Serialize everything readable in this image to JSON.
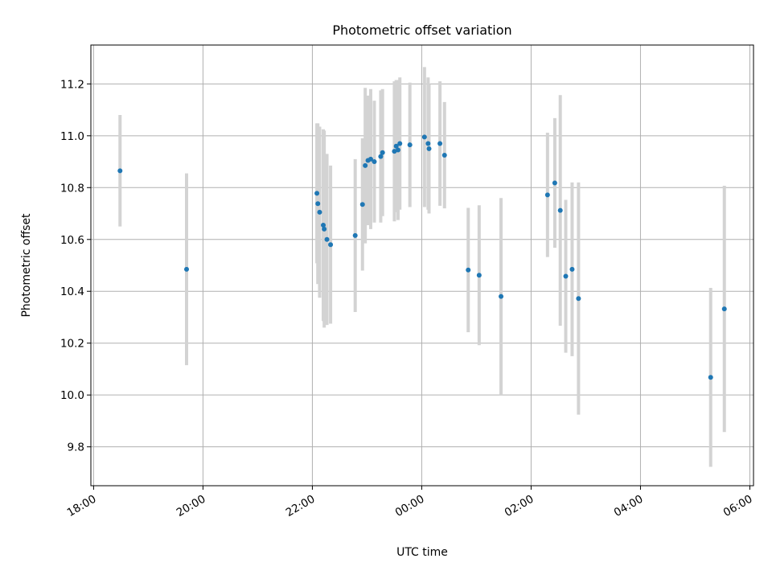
{
  "chart_data": {
    "type": "scatter",
    "title": "Photometric offset variation",
    "xlabel": "UTC time",
    "ylabel": "Photometric offset",
    "x_unit": "UTC time, 18:00 on day 1 to 06:00 on day 2; points given as HH:MM",
    "xlim": [
      "17:57",
      "06:04"
    ],
    "ylim": [
      9.65,
      11.35
    ],
    "x_ticks": [
      "18:00",
      "20:00",
      "22:00",
      "00:00",
      "02:00",
      "04:00",
      "06:00"
    ],
    "y_ticks": [
      "9.8",
      "10.0",
      "10.2",
      "10.4",
      "10.6",
      "10.8",
      "11.0",
      "11.2"
    ],
    "grid": true,
    "series": [
      {
        "color": "#1f77b4",
        "errorbar_color": "#d3d3d3",
        "points": [
          {
            "x": "18:29",
            "y": 10.865,
            "err": 0.215
          },
          {
            "x": "19:42",
            "y": 10.485,
            "err": 0.37
          },
          {
            "x": "22:05",
            "y": 10.778,
            "err": 0.27
          },
          {
            "x": "22:06",
            "y": 10.738,
            "err": 0.31
          },
          {
            "x": "22:08",
            "y": 10.705,
            "err": 0.33
          },
          {
            "x": "22:12",
            "y": 10.655,
            "err": 0.37
          },
          {
            "x": "22:13",
            "y": 10.64,
            "err": 0.38
          },
          {
            "x": "22:16",
            "y": 10.6,
            "err": 0.33
          },
          {
            "x": "22:20",
            "y": 10.58,
            "err": 0.305
          },
          {
            "x": "22:47",
            "y": 10.615,
            "err": 0.295
          },
          {
            "x": "22:55",
            "y": 10.735,
            "err": 0.255
          },
          {
            "x": "22:58",
            "y": 10.885,
            "err": 0.3
          },
          {
            "x": "23:01",
            "y": 10.905,
            "err": 0.25
          },
          {
            "x": "23:04",
            "y": 10.91,
            "err": 0.27
          },
          {
            "x": "23:08",
            "y": 10.9,
            "err": 0.235
          },
          {
            "x": "23:15",
            "y": 10.92,
            "err": 0.255
          },
          {
            "x": "23:17",
            "y": 10.935,
            "err": 0.245
          },
          {
            "x": "23:30",
            "y": 10.94,
            "err": 0.27
          },
          {
            "x": "23:32",
            "y": 10.96,
            "err": 0.255
          },
          {
            "x": "23:34",
            "y": 10.945,
            "err": 0.27
          },
          {
            "x": "23:36",
            "y": 10.97,
            "err": 0.255
          },
          {
            "x": "23:47",
            "y": 10.965,
            "err": 0.24
          },
          {
            "x": "00:03",
            "y": 10.995,
            "err": 0.27
          },
          {
            "x": "00:07",
            "y": 10.97,
            "err": 0.255
          },
          {
            "x": "00:08",
            "y": 10.95,
            "err": 0.25
          },
          {
            "x": "00:20",
            "y": 10.97,
            "err": 0.24
          },
          {
            "x": "00:25",
            "y": 10.925,
            "err": 0.205
          },
          {
            "x": "00:51",
            "y": 10.482,
            "err": 0.24
          },
          {
            "x": "01:03",
            "y": 10.462,
            "err": 0.27
          },
          {
            "x": "01:27",
            "y": 10.38,
            "err": 0.38
          },
          {
            "x": "02:18",
            "y": 10.772,
            "err": 0.24
          },
          {
            "x": "02:26",
            "y": 10.818,
            "err": 0.25
          },
          {
            "x": "02:32",
            "y": 10.712,
            "err": 0.445
          },
          {
            "x": "02:38",
            "y": 10.458,
            "err": 0.295
          },
          {
            "x": "02:45",
            "y": 10.485,
            "err": 0.335
          },
          {
            "x": "02:52",
            "y": 10.372,
            "err": 0.448
          },
          {
            "x": "05:17",
            "y": 10.068,
            "err": 0.345
          },
          {
            "x": "05:32",
            "y": 10.332,
            "err": 0.475
          }
        ]
      }
    ]
  }
}
